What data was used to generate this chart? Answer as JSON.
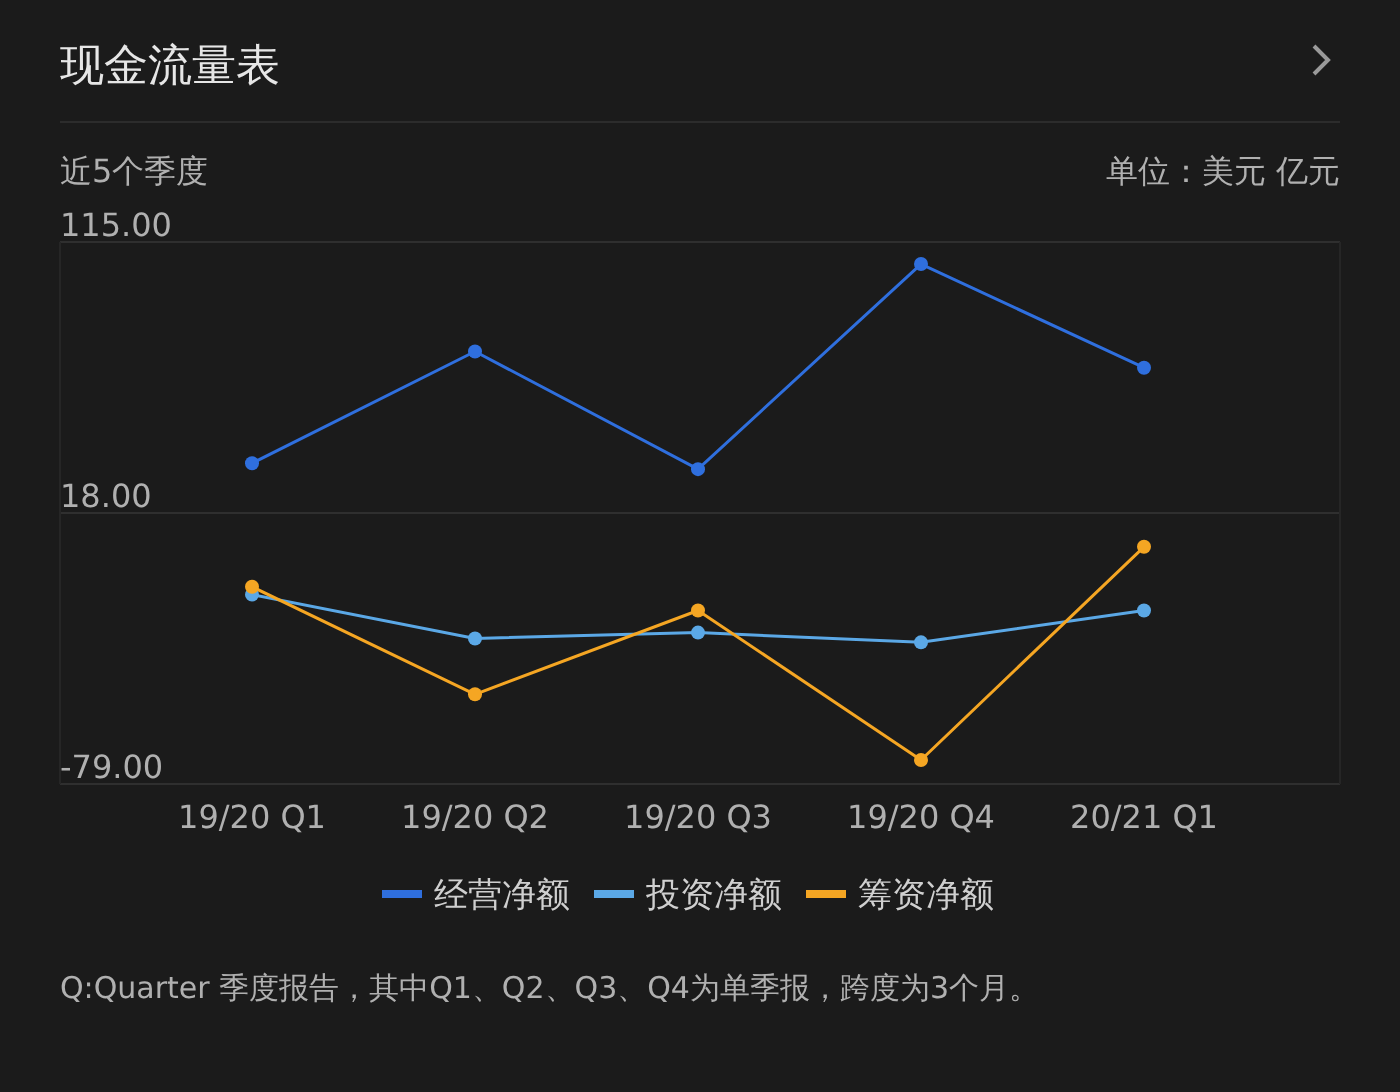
{
  "chart_data": {
    "type": "line",
    "title": "现金流量表",
    "subtitle": "近5个季度",
    "annotations": [
      "单位：美元 亿元",
      "Q:Quarter 季度报告，其中Q1、Q2、Q3、Q4为单季报，跨度为3个月。"
    ],
    "categories": [
      "19/20 Q1",
      "19/20 Q2",
      "19/20 Q3",
      "19/20 Q4",
      "20/21 Q1"
    ],
    "series": [
      {
        "name": "经营净额",
        "color": "#2f6fde",
        "values": [
          35.8,
          75.8,
          33.7,
          107.1,
          70.0
        ]
      },
      {
        "name": "投资净额",
        "color": "#5ba8e6",
        "values": [
          -11.2,
          -26.9,
          -24.8,
          -28.3,
          -16.9
        ]
      },
      {
        "name": "筹资净额",
        "color": "#f5a623",
        "values": [
          -8.4,
          -46.9,
          -16.9,
          -70.4,
          5.9
        ]
      }
    ],
    "ylim": [
      -79,
      115
    ],
    "yticks": [
      {
        "value": -79,
        "label": "-79.00"
      },
      {
        "value": 18,
        "label": "18.00"
      },
      {
        "value": 115,
        "label": "115.00"
      }
    ],
    "grid": "y",
    "legend": "bottom",
    "marker": "circle",
    "line_style": "solid"
  }
}
